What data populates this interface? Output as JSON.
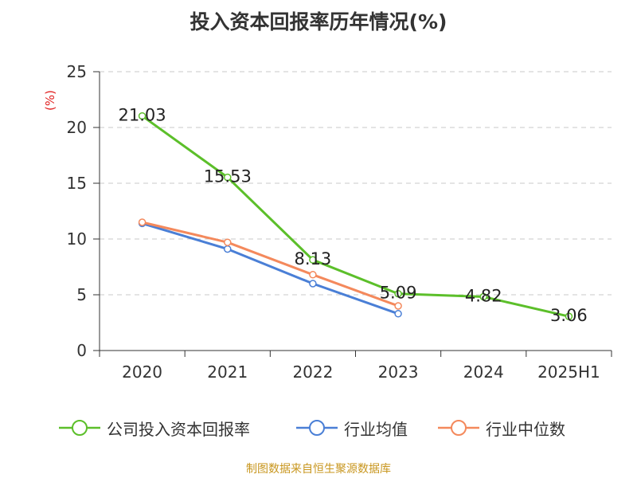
{
  "title": "投入资本回报率历年情况(%)",
  "source": "制图数据来自恒生聚源数据库",
  "chart_data": {
    "type": "line",
    "categories": [
      "2020",
      "2021",
      "2022",
      "2023",
      "2024",
      "2025H1"
    ],
    "ylabel": "(%)",
    "ylim": [
      0,
      25
    ],
    "yticks": [
      "0",
      "5",
      "10",
      "15",
      "20",
      "25"
    ],
    "grid": true,
    "legend_position": "bottom",
    "series": [
      {
        "name": "公司投入资本回报率",
        "color": "#5cbf2a",
        "values": [
          21.03,
          15.53,
          8.13,
          5.09,
          4.82,
          3.06
        ],
        "labels": [
          "21.03",
          "15.53",
          "8.13",
          "5.09",
          "4.82",
          "3.06"
        ]
      },
      {
        "name": "行业均值",
        "color": "#4a7fd6",
        "values": [
          11.4,
          9.1,
          6.0,
          3.3,
          null,
          null
        ],
        "labels": []
      },
      {
        "name": "行业中位数",
        "color": "#f4895c",
        "values": [
          11.5,
          9.7,
          6.8,
          4.0,
          null,
          null
        ],
        "labels": []
      }
    ]
  }
}
